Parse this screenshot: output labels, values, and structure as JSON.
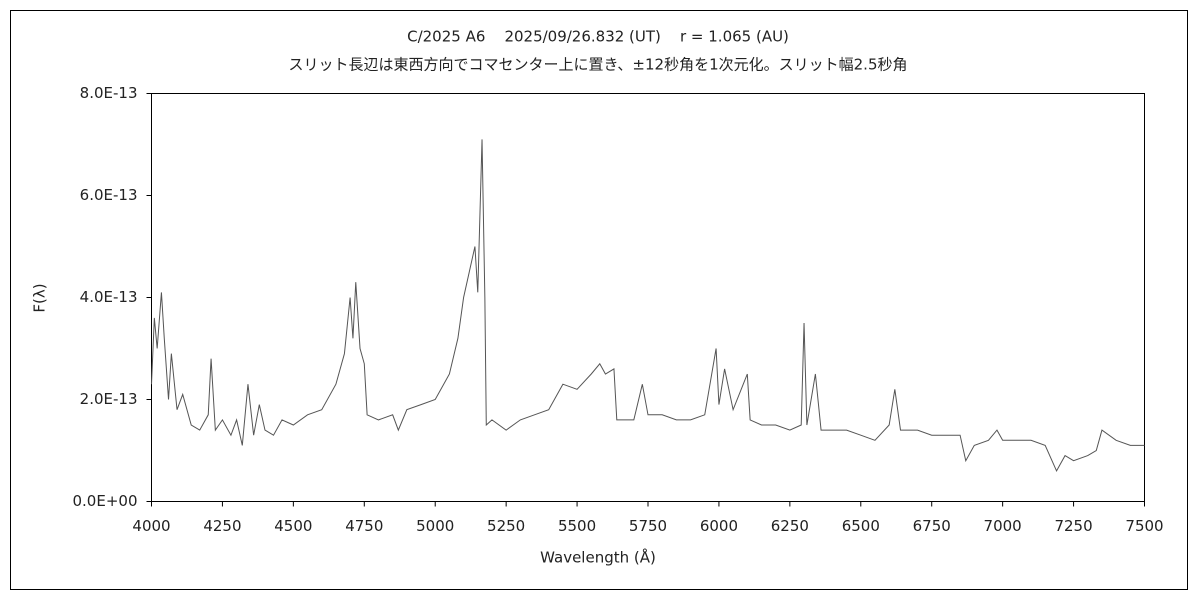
{
  "chart_data": {
    "type": "line",
    "title": "C/2025 A6    2025/09/26.832 (UT)    r = 1.065 (AU)",
    "subtitle": "スリット長辺は東西方向でコマセンター上に置き、±12秒角を1次元化。スリット幅2.5秒角",
    "x_label": "Wavelength (Å)",
    "y_label": "F(λ)",
    "color": "#555555",
    "xlim": [
      4000,
      7500
    ],
    "xticks": [
      4000,
      4250,
      4500,
      4750,
      5000,
      5250,
      5500,
      5750,
      6000,
      6250,
      6500,
      6750,
      7000,
      7250,
      7500
    ],
    "ylim": [
      0,
      8e-13
    ],
    "yticks": [
      {
        "value": 0,
        "label": "0.0E+00"
      },
      {
        "value": 2e-13,
        "label": "2.0E-13"
      },
      {
        "value": 4e-13,
        "label": "4.0E-13"
      },
      {
        "value": 6e-13,
        "label": "6.0E-13"
      },
      {
        "value": 8e-13,
        "label": "8.0E-13"
      }
    ],
    "x": [
      4000,
      4010,
      4020,
      4035,
      4045,
      4060,
      4070,
      4090,
      4110,
      4140,
      4170,
      4200,
      4210,
      4225,
      4250,
      4280,
      4300,
      4320,
      4340,
      4360,
      4380,
      4400,
      4430,
      4460,
      4500,
      4550,
      4600,
      4650,
      4680,
      4700,
      4710,
      4720,
      4735,
      4750,
      4760,
      4800,
      4850,
      4870,
      4900,
      4950,
      5000,
      5050,
      5080,
      5100,
      5120,
      5140,
      5150,
      5165,
      5175,
      5180,
      5200,
      5250,
      5300,
      5350,
      5400,
      5450,
      5500,
      5550,
      5580,
      5600,
      5630,
      5640,
      5700,
      5730,
      5750,
      5800,
      5850,
      5900,
      5950,
      5990,
      6000,
      6020,
      6050,
      6100,
      6110,
      6150,
      6200,
      6250,
      6290,
      6300,
      6310,
      6340,
      6360,
      6400,
      6450,
      6500,
      6550,
      6600,
      6620,
      6640,
      6700,
      6750,
      6800,
      6850,
      6870,
      6900,
      6950,
      6980,
      7000,
      7050,
      7100,
      7150,
      7190,
      7220,
      7250,
      7300,
      7330,
      7350,
      7400,
      7450,
      7500
    ],
    "values": [
      2.3e-13,
      3.6e-13,
      3e-13,
      4.1e-13,
      3.2e-13,
      2e-13,
      2.9e-13,
      1.8e-13,
      2.1e-13,
      1.5e-13,
      1.4e-13,
      1.7e-13,
      2.8e-13,
      1.4e-13,
      1.6e-13,
      1.3e-13,
      1.6e-13,
      1.1e-13,
      2.3e-13,
      1.3e-13,
      1.9e-13,
      1.4e-13,
      1.3e-13,
      1.6e-13,
      1.5e-13,
      1.7e-13,
      1.8e-13,
      2.3e-13,
      2.9e-13,
      4e-13,
      3.2e-13,
      4.3e-13,
      3e-13,
      2.7e-13,
      1.7e-13,
      1.6e-13,
      1.7e-13,
      1.4e-13,
      1.8e-13,
      1.9e-13,
      2e-13,
      2.5e-13,
      3.2e-13,
      4e-13,
      4.5e-13,
      5e-13,
      4.1e-13,
      7.1e-13,
      4e-13,
      1.5e-13,
      1.6e-13,
      1.4e-13,
      1.6e-13,
      1.7e-13,
      1.8e-13,
      2.3e-13,
      2.2e-13,
      2.5e-13,
      2.7e-13,
      2.5e-13,
      2.6e-13,
      1.6e-13,
      1.6e-13,
      2.3e-13,
      1.7e-13,
      1.7e-13,
      1.6e-13,
      1.6e-13,
      1.7e-13,
      3e-13,
      1.9e-13,
      2.6e-13,
      1.8e-13,
      2.5e-13,
      1.6e-13,
      1.5e-13,
      1.5e-13,
      1.4e-13,
      1.5e-13,
      3.5e-13,
      1.5e-13,
      2.5e-13,
      1.4e-13,
      1.4e-13,
      1.4e-13,
      1.3e-13,
      1.2e-13,
      1.5e-13,
      2.2e-13,
      1.4e-13,
      1.4e-13,
      1.3e-13,
      1.3e-13,
      1.3e-13,
      8e-14,
      1.1e-13,
      1.2e-13,
      1.4e-13,
      1.2e-13,
      1.2e-13,
      1.2e-13,
      1.1e-13,
      6e-14,
      9e-14,
      8e-14,
      9e-14,
      1e-13,
      1.4e-13,
      1.2e-13,
      1.1e-13,
      1.1e-13
    ]
  }
}
